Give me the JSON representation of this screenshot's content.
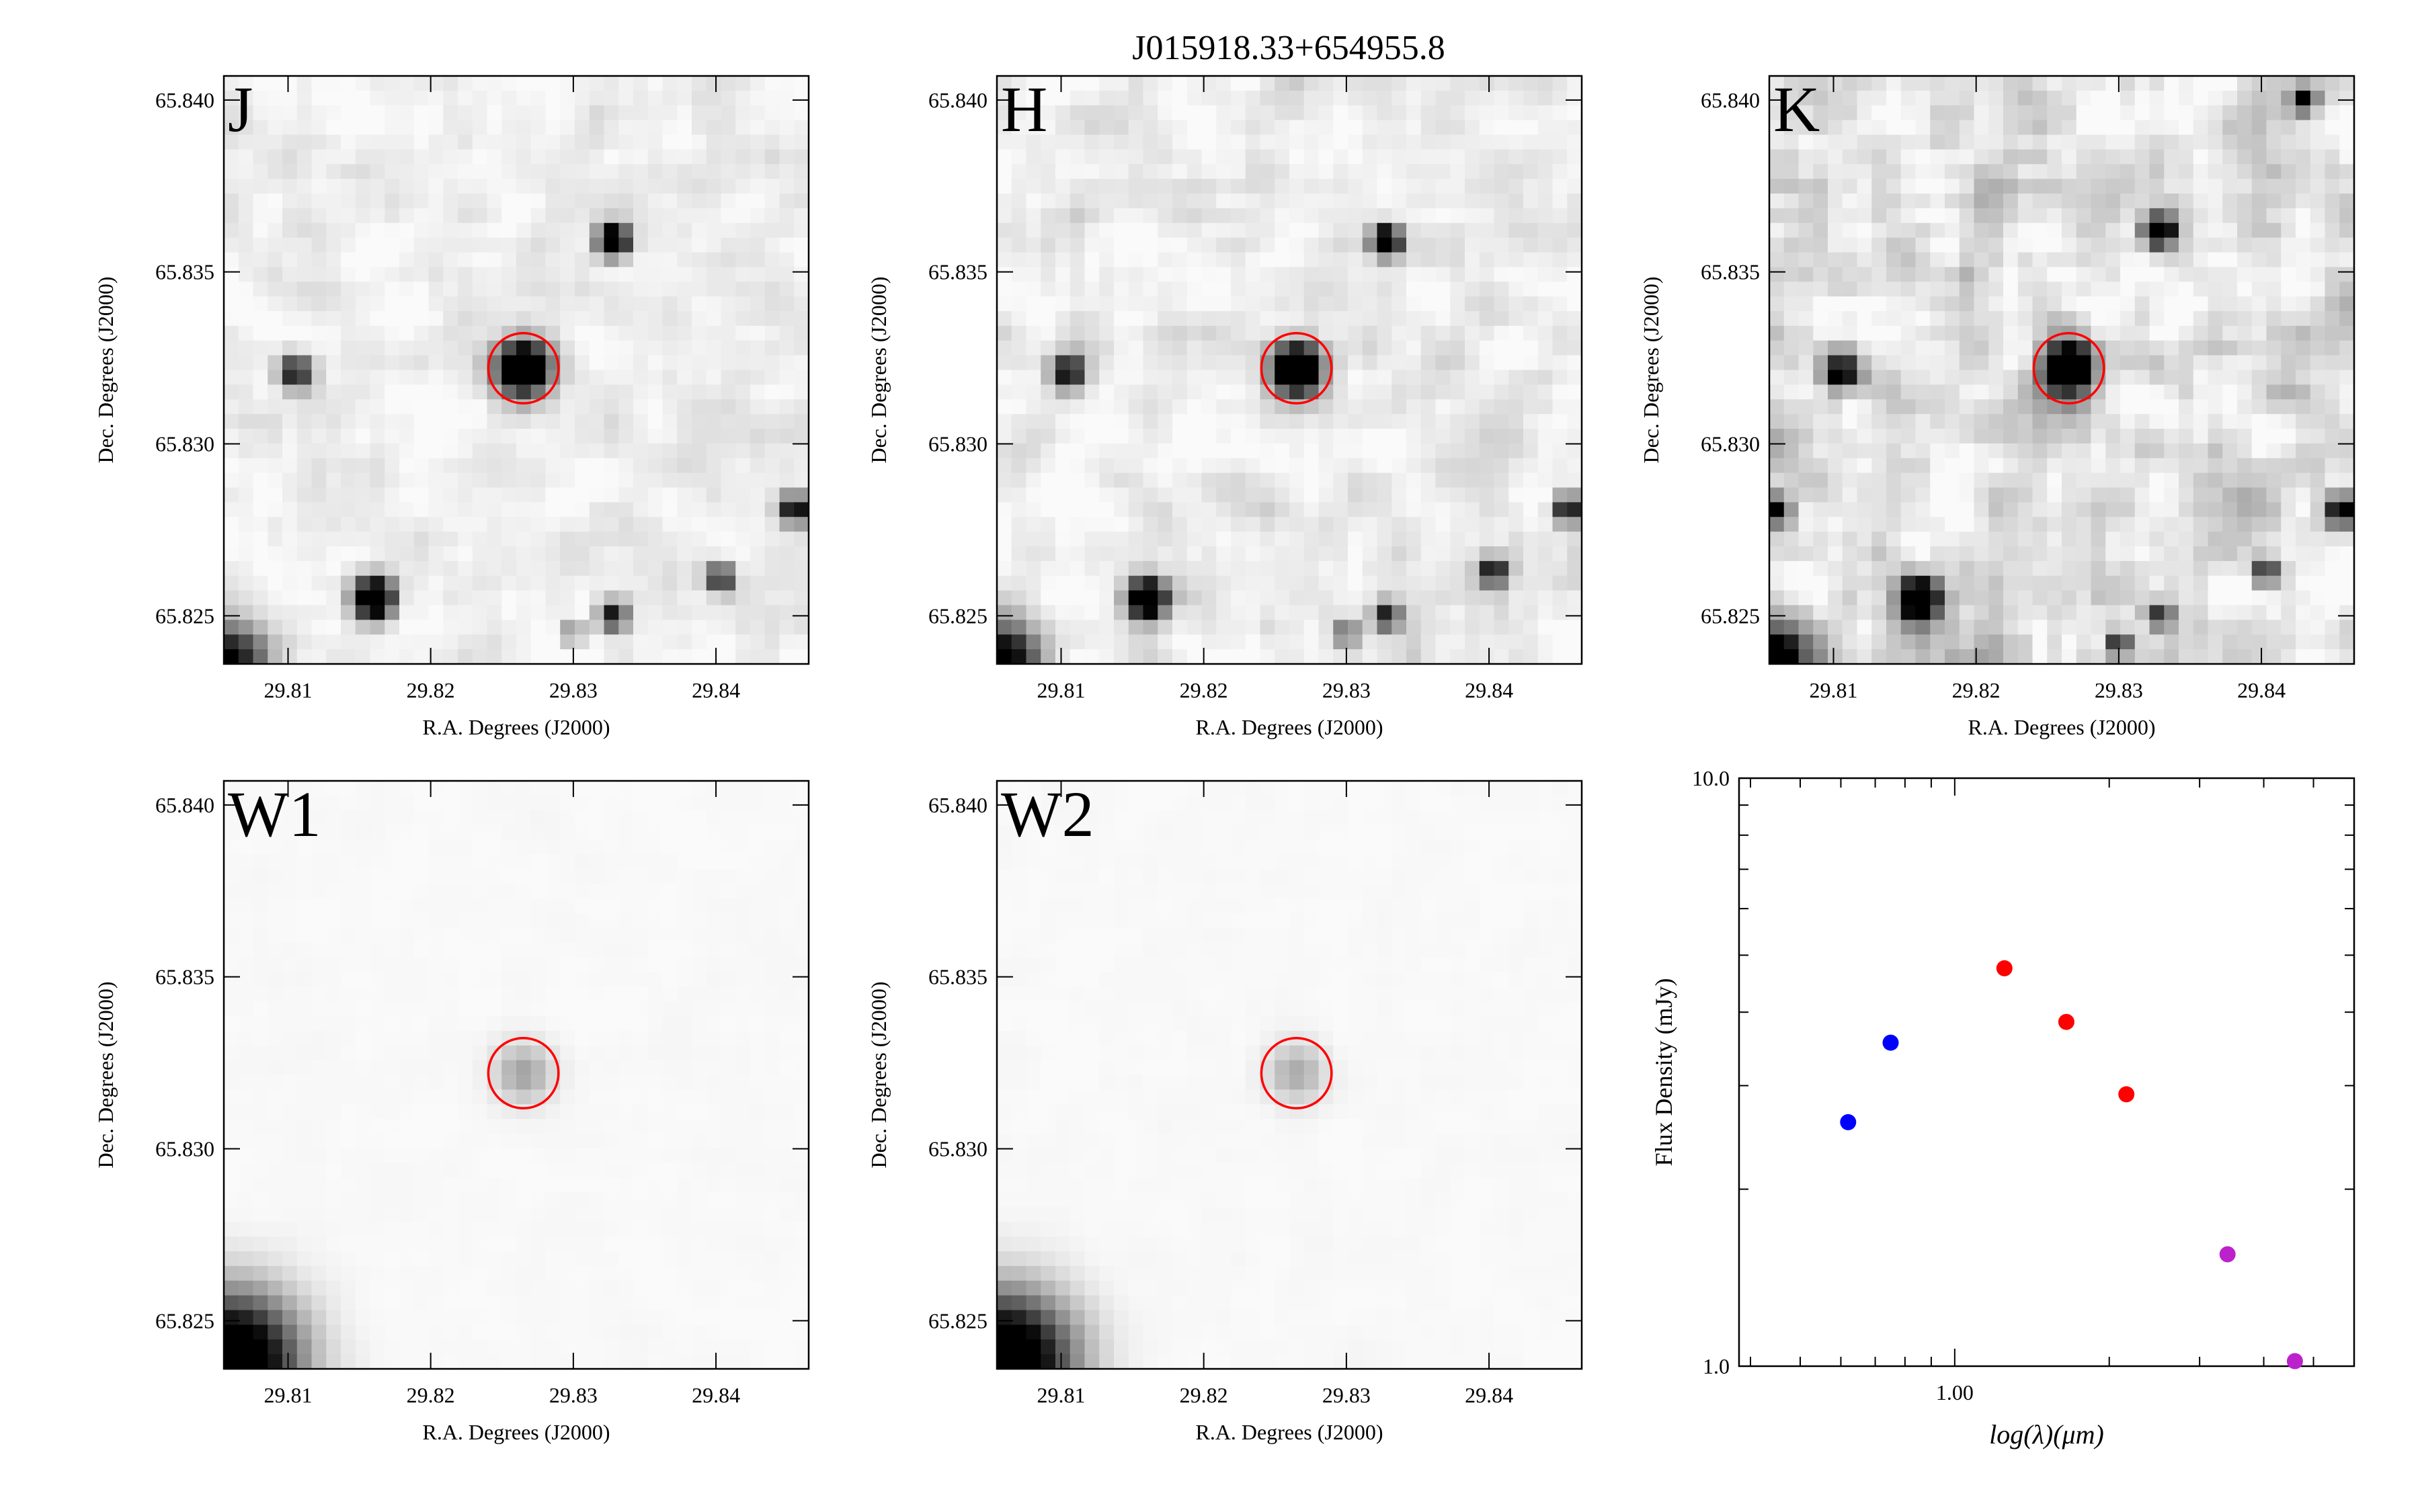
{
  "title": "J015918.33+654955.8",
  "colors": {
    "band_label": "#ff00ff",
    "aperture": "#ff0000",
    "optical_points": "#0000ff",
    "nir_points": "#ff0000",
    "mir_points": "#bb22cc"
  },
  "panels": [
    {
      "band": "J",
      "xlabel": "R.A. Degrees (J2000)",
      "ylabel": "Dec. Degrees (J2000)",
      "xticks": [
        "29.81",
        "29.82",
        "29.83",
        "29.84"
      ],
      "yticks": [
        "65.825",
        "65.830",
        "65.835",
        "65.840"
      ],
      "xlim": [
        29.8055,
        29.8465
      ],
      "ylim": [
        65.8236,
        65.8407
      ],
      "target": {
        "ra": 29.8265,
        "dec": 65.8322
      },
      "sources": [
        {
          "ra": 29.8265,
          "dec": 65.8322,
          "size": 1.3,
          "level": 1.0
        },
        {
          "ra": 29.8328,
          "dec": 65.8359,
          "size": 0.75,
          "level": 0.95
        },
        {
          "ra": 29.8105,
          "dec": 65.8321,
          "size": 0.8,
          "level": 0.6
        },
        {
          "ra": 29.816,
          "dec": 65.8255,
          "size": 0.95,
          "level": 1.0
        },
        {
          "ra": 29.8403,
          "dec": 65.8261,
          "size": 0.7,
          "level": 0.6
        },
        {
          "ra": 29.8328,
          "dec": 65.825,
          "size": 0.7,
          "level": 0.6
        },
        {
          "ra": 29.8455,
          "dec": 65.8281,
          "size": 0.7,
          "level": 0.65
        },
        {
          "ra": 29.83,
          "dec": 65.8245,
          "size": 0.55,
          "level": 0.35
        }
      ],
      "noise": 0.13,
      "corner_dark": 0.7
    },
    {
      "band": "H",
      "xlabel": "R.A. Degrees (J2000)",
      "ylabel": "Dec. Degrees (J2000)",
      "xticks": [
        "29.81",
        "29.82",
        "29.83",
        "29.84"
      ],
      "yticks": [
        "65.825",
        "65.830",
        "65.835",
        "65.840"
      ],
      "xlim": [
        29.8055,
        29.8465
      ],
      "ylim": [
        65.8236,
        65.8407
      ],
      "target": {
        "ra": 29.8265,
        "dec": 65.8322
      },
      "sources": [
        {
          "ra": 29.8265,
          "dec": 65.8322,
          "size": 1.2,
          "level": 1.0
        },
        {
          "ra": 29.8328,
          "dec": 65.8359,
          "size": 0.7,
          "level": 0.95
        },
        {
          "ra": 29.8105,
          "dec": 65.8321,
          "size": 0.8,
          "level": 0.65
        },
        {
          "ra": 29.816,
          "dec": 65.8255,
          "size": 0.95,
          "level": 1.0
        },
        {
          "ra": 29.8403,
          "dec": 65.8263,
          "size": 0.7,
          "level": 0.6
        },
        {
          "ra": 29.8328,
          "dec": 65.825,
          "size": 0.7,
          "level": 0.55
        },
        {
          "ra": 29.8455,
          "dec": 65.8281,
          "size": 0.7,
          "level": 0.6
        },
        {
          "ra": 29.83,
          "dec": 65.8245,
          "size": 0.55,
          "level": 0.4
        }
      ],
      "noise": 0.16,
      "corner_dark": 0.75
    },
    {
      "band": "K",
      "xlabel": "R.A. Degrees (J2000)",
      "ylabel": "Dec. Degrees (J2000)",
      "xticks": [
        "29.81",
        "29.82",
        "29.83",
        "29.84"
      ],
      "yticks": [
        "65.825",
        "65.830",
        "65.835",
        "65.840"
      ],
      "xlim": [
        29.8055,
        29.8465
      ],
      "ylim": [
        65.8236,
        65.8407
      ],
      "target": {
        "ra": 29.8265,
        "dec": 65.8322
      },
      "sources": [
        {
          "ra": 29.8265,
          "dec": 65.8322,
          "size": 1.25,
          "level": 1.0
        },
        {
          "ra": 29.8328,
          "dec": 65.8362,
          "size": 0.75,
          "level": 0.9
        },
        {
          "ra": 29.8105,
          "dec": 65.8321,
          "size": 0.85,
          "level": 0.7
        },
        {
          "ra": 29.816,
          "dec": 65.8255,
          "size": 1.0,
          "level": 1.0
        },
        {
          "ra": 29.8403,
          "dec": 65.8263,
          "size": 0.7,
          "level": 0.55
        },
        {
          "ra": 29.8328,
          "dec": 65.825,
          "size": 0.7,
          "level": 0.6
        },
        {
          "ra": 29.8455,
          "dec": 65.8281,
          "size": 0.75,
          "level": 0.6
        },
        {
          "ra": 29.83,
          "dec": 65.8242,
          "size": 0.6,
          "level": 0.55
        },
        {
          "ra": 29.806,
          "dec": 65.8281,
          "size": 0.7,
          "level": 0.6
        },
        {
          "ra": 29.843,
          "dec": 65.84,
          "size": 0.6,
          "level": 0.55
        }
      ],
      "noise": 0.28,
      "corner_dark": 0.85
    },
    {
      "band": "W1",
      "xlabel": "R.A. Degrees (J2000)",
      "ylabel": "Dec. Degrees (J2000)",
      "xticks": [
        "29.81",
        "29.82",
        "29.83",
        "29.84"
      ],
      "yticks": [
        "65.825",
        "65.830",
        "65.835",
        "65.840"
      ],
      "xlim": [
        29.8055,
        29.8465
      ],
      "ylim": [
        65.8236,
        65.8407
      ],
      "target": {
        "ra": 29.8265,
        "dec": 65.8322
      },
      "sources": [
        {
          "ra": 29.8265,
          "dec": 65.8322,
          "size": 1.4,
          "level": 0.22
        }
      ],
      "noise": 0.015,
      "corner_dark": 1.0
    },
    {
      "band": "W2",
      "xlabel": "R.A. Degrees (J2000)",
      "ylabel": "Dec. Degrees (J2000)",
      "xticks": [
        "29.81",
        "29.82",
        "29.83",
        "29.84"
      ],
      "yticks": [
        "65.825",
        "65.830",
        "65.835",
        "65.840"
      ],
      "xlim": [
        29.8055,
        29.8465
      ],
      "ylim": [
        65.8236,
        65.8407
      ],
      "target": {
        "ra": 29.8265,
        "dec": 65.8322
      },
      "sources": [
        {
          "ra": 29.8265,
          "dec": 65.8322,
          "size": 1.4,
          "level": 0.2
        }
      ],
      "noise": 0.015,
      "corner_dark": 1.0
    }
  ],
  "chart_data": {
    "type": "scatter",
    "xscale": "log",
    "yscale": "log",
    "xlabel": "log(λ)(μm)",
    "ylabel": "Flux Density (mJy)",
    "xlim": [
      0.38,
      6.0
    ],
    "ylim": [
      1.0,
      10.0
    ],
    "xticks": [
      "1.00"
    ],
    "yticks": [
      "1.0",
      "10.0"
    ],
    "series": [
      {
        "color": "#0000ff",
        "x": [
          0.62,
          0.75
        ],
        "y": [
          2.6,
          3.55
        ]
      },
      {
        "color": "#ff0000",
        "x": [
          1.25,
          1.65,
          2.16
        ],
        "y": [
          4.75,
          3.85,
          2.9
        ]
      },
      {
        "color": "#bb22cc",
        "x": [
          3.4,
          4.6
        ],
        "y": [
          1.55,
          1.02
        ]
      }
    ]
  }
}
